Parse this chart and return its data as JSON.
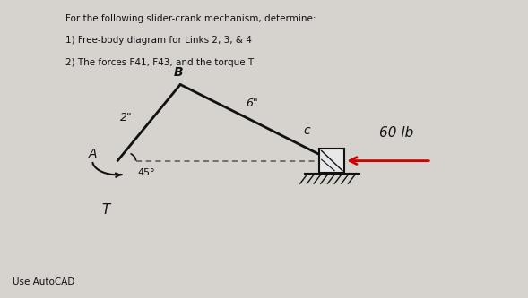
{
  "title_lines": [
    "For the following slider-crank mechanism, determine:",
    "1) Free-body diagram for Links 2, 3, & 4",
    "2) The forces F41, F43, and the torque T"
  ],
  "footer": "Use AutoCAD",
  "bg_color": "#d6d2ce",
  "text_color": "#111111",
  "A": [
    0.22,
    0.46
  ],
  "B": [
    0.34,
    0.72
  ],
  "C": [
    0.63,
    0.46
  ],
  "link2_label": "2\"",
  "link3_label": "6\"",
  "angle_label": "45°",
  "force_label": "60 lb",
  "point_A_label": "A",
  "point_B_label": "B",
  "point_C_label": "c",
  "torque_label": "T",
  "force_color": "#cc0000",
  "link_color": "#111111",
  "dashed_color": "#555555"
}
